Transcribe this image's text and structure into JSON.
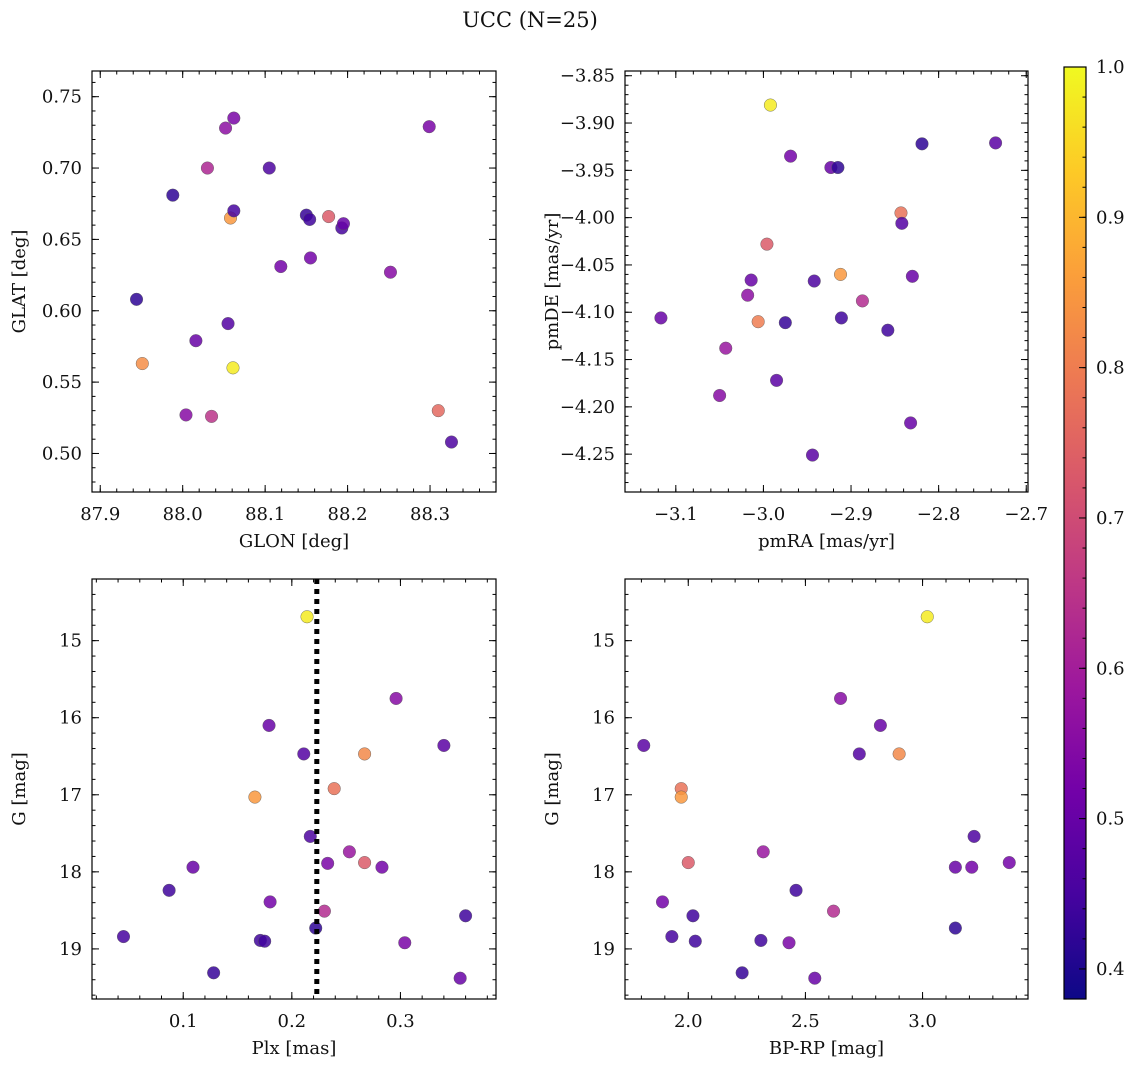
{
  "figure": {
    "title": "UCC (N=25)"
  },
  "colormap": {
    "name": "plasma",
    "range": [
      0.38,
      1.0
    ],
    "stops": [
      "#0d0887",
      "#46039f",
      "#7201a8",
      "#9c179e",
      "#bd3786",
      "#d8576b",
      "#ed7953",
      "#fb9f3a",
      "#fdca26",
      "#f0f921"
    ],
    "ticks": [
      0.4,
      0.5,
      0.6,
      0.7,
      0.8,
      0.9,
      1.0
    ],
    "tick_labels": [
      "0.4",
      "0.5",
      "0.6",
      "0.7",
      "0.8",
      "0.9",
      "1.0"
    ]
  },
  "chart_data": [
    {
      "type": "scatter",
      "xlabel": "GLON [deg]",
      "ylabel": "GLAT [deg]",
      "xlim": [
        87.89,
        88.38
      ],
      "ylim": [
        0.473,
        0.768
      ],
      "xticks": [
        87.9,
        88.0,
        88.1,
        88.2,
        88.3
      ],
      "xtick_labels": [
        "87.9",
        "88.0",
        "88.1",
        "88.2",
        "88.3"
      ],
      "yticks": [
        0.5,
        0.55,
        0.6,
        0.65,
        0.7,
        0.75
      ],
      "ytick_labels": [
        "0.50",
        "0.55",
        "0.60",
        "0.65",
        "0.70",
        "0.75"
      ],
      "invert_y": false,
      "points": [
        {
          "x": 87.944,
          "y": 0.608,
          "c": 0.42
        },
        {
          "x": 87.951,
          "y": 0.563,
          "c": 0.83
        },
        {
          "x": 87.988,
          "y": 0.681,
          "c": 0.42
        },
        {
          "x": 88.004,
          "y": 0.527,
          "c": 0.55
        },
        {
          "x": 88.016,
          "y": 0.579,
          "c": 0.5
        },
        {
          "x": 88.03,
          "y": 0.7,
          "c": 0.62
        },
        {
          "x": 88.035,
          "y": 0.526,
          "c": 0.65
        },
        {
          "x": 88.052,
          "y": 0.728,
          "c": 0.56
        },
        {
          "x": 88.055,
          "y": 0.591,
          "c": 0.47
        },
        {
          "x": 88.058,
          "y": 0.665,
          "c": 0.85
        },
        {
          "x": 88.061,
          "y": 0.56,
          "c": 0.98
        },
        {
          "x": 88.062,
          "y": 0.735,
          "c": 0.53
        },
        {
          "x": 88.062,
          "y": 0.67,
          "c": 0.45
        },
        {
          "x": 88.105,
          "y": 0.7,
          "c": 0.46
        },
        {
          "x": 88.119,
          "y": 0.631,
          "c": 0.52
        },
        {
          "x": 88.15,
          "y": 0.667,
          "c": 0.43
        },
        {
          "x": 88.154,
          "y": 0.664,
          "c": 0.44
        },
        {
          "x": 88.155,
          "y": 0.637,
          "c": 0.52
        },
        {
          "x": 88.177,
          "y": 0.666,
          "c": 0.73
        },
        {
          "x": 88.193,
          "y": 0.658,
          "c": 0.45
        },
        {
          "x": 88.195,
          "y": 0.661,
          "c": 0.5
        },
        {
          "x": 88.252,
          "y": 0.627,
          "c": 0.55
        },
        {
          "x": 88.299,
          "y": 0.729,
          "c": 0.53
        },
        {
          "x": 88.31,
          "y": 0.53,
          "c": 0.76
        },
        {
          "x": 88.326,
          "y": 0.508,
          "c": 0.46
        }
      ]
    },
    {
      "type": "scatter",
      "xlabel": "pmRA [mas/yr]",
      "ylabel": "pmDE [mas/yr]",
      "xlim": [
        -3.158,
        -2.698
      ],
      "ylim": [
        -4.29,
        -3.845
      ],
      "xticks": [
        -3.1,
        -3.0,
        -2.9,
        -2.8,
        -2.7
      ],
      "xtick_labels": [
        "−3.1",
        "−3.0",
        "−2.9",
        "−2.8",
        "−2.7"
      ],
      "yticks": [
        -4.25,
        -4.2,
        -4.15,
        -4.1,
        -4.05,
        -4.0,
        -3.95,
        -3.9,
        -3.85
      ],
      "ytick_labels": [
        "−4.25",
        "−4.20",
        "−4.15",
        "−4.10",
        "−4.05",
        "−4.00",
        "−3.95",
        "−3.90",
        "−3.85"
      ],
      "invert_y": false,
      "points": [
        {
          "x": -3.117,
          "y": -4.106,
          "c": 0.5
        },
        {
          "x": -3.05,
          "y": -4.188,
          "c": 0.55
        },
        {
          "x": -3.043,
          "y": -4.138,
          "c": 0.58
        },
        {
          "x": -3.018,
          "y": -4.082,
          "c": 0.56
        },
        {
          "x": -3.014,
          "y": -4.066,
          "c": 0.5
        },
        {
          "x": -3.006,
          "y": -4.11,
          "c": 0.8
        },
        {
          "x": -2.996,
          "y": -4.028,
          "c": 0.73
        },
        {
          "x": -2.992,
          "y": -3.881,
          "c": 0.98
        },
        {
          "x": -2.985,
          "y": -4.172,
          "c": 0.48
        },
        {
          "x": -2.975,
          "y": -4.111,
          "c": 0.43
        },
        {
          "x": -2.969,
          "y": -3.935,
          "c": 0.52
        },
        {
          "x": -2.944,
          "y": -4.251,
          "c": 0.48
        },
        {
          "x": -2.942,
          "y": -4.067,
          "c": 0.46
        },
        {
          "x": -2.923,
          "y": -3.947,
          "c": 0.5
        },
        {
          "x": -2.915,
          "y": -3.947,
          "c": 0.42
        },
        {
          "x": -2.912,
          "y": -4.06,
          "c": 0.85
        },
        {
          "x": -2.911,
          "y": -4.106,
          "c": 0.44
        },
        {
          "x": -2.887,
          "y": -4.088,
          "c": 0.63
        },
        {
          "x": -2.858,
          "y": -4.119,
          "c": 0.44
        },
        {
          "x": -2.843,
          "y": -3.995,
          "c": 0.78
        },
        {
          "x": -2.842,
          "y": -4.006,
          "c": 0.47
        },
        {
          "x": -2.832,
          "y": -4.217,
          "c": 0.5
        },
        {
          "x": -2.83,
          "y": -4.062,
          "c": 0.5
        },
        {
          "x": -2.819,
          "y": -3.922,
          "c": 0.42
        },
        {
          "x": -2.735,
          "y": -3.921,
          "c": 0.48
        }
      ]
    },
    {
      "type": "scatter",
      "xlabel": "Plx [mas]",
      "ylabel": "G [mag]",
      "xlim": [
        0.016,
        0.388
      ],
      "ylim": [
        14.2,
        19.65
      ],
      "xticks": [
        0.1,
        0.2,
        0.3
      ],
      "xtick_labels": [
        "0.1",
        "0.2",
        "0.3"
      ],
      "yticks": [
        15,
        16,
        17,
        18,
        19
      ],
      "ytick_labels": [
        "15",
        "16",
        "17",
        "18",
        "19"
      ],
      "invert_y": true,
      "vline": {
        "x": 0.223,
        "style": "dotted"
      },
      "points": [
        {
          "x": 0.045,
          "y": 18.84,
          "c": 0.45
        },
        {
          "x": 0.087,
          "y": 18.24,
          "c": 0.44
        },
        {
          "x": 0.109,
          "y": 17.94,
          "c": 0.5
        },
        {
          "x": 0.128,
          "y": 19.31,
          "c": 0.43
        },
        {
          "x": 0.166,
          "y": 17.03,
          "c": 0.85
        },
        {
          "x": 0.171,
          "y": 18.89,
          "c": 0.44
        },
        {
          "x": 0.175,
          "y": 18.9,
          "c": 0.44
        },
        {
          "x": 0.179,
          "y": 16.1,
          "c": 0.5
        },
        {
          "x": 0.18,
          "y": 18.39,
          "c": 0.52
        },
        {
          "x": 0.211,
          "y": 16.47,
          "c": 0.47
        },
        {
          "x": 0.214,
          "y": 14.69,
          "c": 0.98
        },
        {
          "x": 0.217,
          "y": 17.54,
          "c": 0.46
        },
        {
          "x": 0.222,
          "y": 18.73,
          "c": 0.42
        },
        {
          "x": 0.23,
          "y": 18.51,
          "c": 0.63
        },
        {
          "x": 0.233,
          "y": 17.89,
          "c": 0.53
        },
        {
          "x": 0.239,
          "y": 16.92,
          "c": 0.78
        },
        {
          "x": 0.253,
          "y": 17.74,
          "c": 0.58
        },
        {
          "x": 0.267,
          "y": 16.47,
          "c": 0.82
        },
        {
          "x": 0.267,
          "y": 17.88,
          "c": 0.73
        },
        {
          "x": 0.283,
          "y": 17.94,
          "c": 0.52
        },
        {
          "x": 0.296,
          "y": 15.75,
          "c": 0.55
        },
        {
          "x": 0.304,
          "y": 18.92,
          "c": 0.53
        },
        {
          "x": 0.34,
          "y": 16.36,
          "c": 0.48
        },
        {
          "x": 0.355,
          "y": 19.38,
          "c": 0.5
        },
        {
          "x": 0.36,
          "y": 18.57,
          "c": 0.44
        }
      ]
    },
    {
      "type": "scatter",
      "xlabel": "BP-RP [mag]",
      "ylabel": "G [mag]",
      "xlim": [
        1.73,
        3.45
      ],
      "ylim": [
        14.2,
        19.65
      ],
      "xticks": [
        2.0,
        2.5,
        3.0
      ],
      "xtick_labels": [
        "2.0",
        "2.5",
        "3.0"
      ],
      "yticks": [
        15,
        16,
        17,
        18,
        19
      ],
      "ytick_labels": [
        "15",
        "16",
        "17",
        "18",
        "19"
      ],
      "invert_y": true,
      "points": [
        {
          "x": 1.81,
          "y": 16.36,
          "c": 0.48
        },
        {
          "x": 1.89,
          "y": 18.39,
          "c": 0.52
        },
        {
          "x": 1.93,
          "y": 18.84,
          "c": 0.45
        },
        {
          "x": 1.97,
          "y": 16.92,
          "c": 0.78
        },
        {
          "x": 1.97,
          "y": 17.03,
          "c": 0.85
        },
        {
          "x": 2.0,
          "y": 17.88,
          "c": 0.73
        },
        {
          "x": 2.02,
          "y": 18.57,
          "c": 0.44
        },
        {
          "x": 2.03,
          "y": 18.9,
          "c": 0.44
        },
        {
          "x": 2.23,
          "y": 19.31,
          "c": 0.43
        },
        {
          "x": 2.31,
          "y": 18.89,
          "c": 0.44
        },
        {
          "x": 2.32,
          "y": 17.74,
          "c": 0.58
        },
        {
          "x": 2.43,
          "y": 18.92,
          "c": 0.53
        },
        {
          "x": 2.46,
          "y": 18.24,
          "c": 0.44
        },
        {
          "x": 2.54,
          "y": 19.38,
          "c": 0.5
        },
        {
          "x": 2.62,
          "y": 18.51,
          "c": 0.63
        },
        {
          "x": 2.65,
          "y": 15.75,
          "c": 0.55
        },
        {
          "x": 2.73,
          "y": 16.47,
          "c": 0.47
        },
        {
          "x": 2.82,
          "y": 16.1,
          "c": 0.5
        },
        {
          "x": 2.9,
          "y": 16.47,
          "c": 0.82
        },
        {
          "x": 3.02,
          "y": 14.69,
          "c": 0.98
        },
        {
          "x": 3.14,
          "y": 17.94,
          "c": 0.5
        },
        {
          "x": 3.14,
          "y": 18.73,
          "c": 0.42
        },
        {
          "x": 3.21,
          "y": 17.94,
          "c": 0.52
        },
        {
          "x": 3.22,
          "y": 17.54,
          "c": 0.46
        },
        {
          "x": 3.37,
          "y": 17.88,
          "c": 0.52
        }
      ]
    }
  ]
}
